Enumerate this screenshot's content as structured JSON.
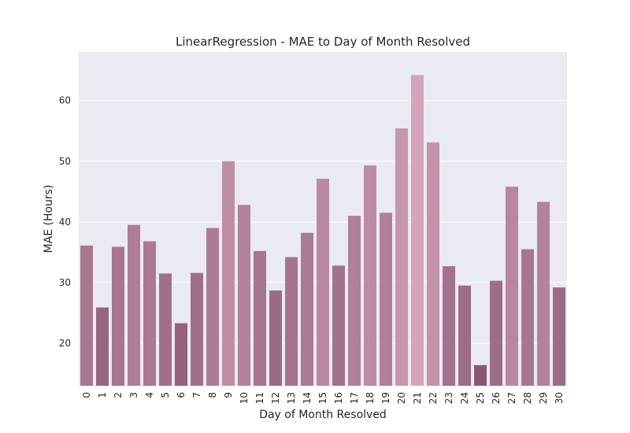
{
  "chart_data": {
    "type": "bar",
    "title": "LinearRegression - MAE to Day of Month Resolved",
    "xlabel": "Day of Month Resolved",
    "ylabel": "MAE (Hours)",
    "categories": [
      "0",
      "1",
      "2",
      "3",
      "4",
      "5",
      "6",
      "7",
      "8",
      "9",
      "10",
      "11",
      "12",
      "13",
      "14",
      "15",
      "16",
      "17",
      "18",
      "19",
      "20",
      "21",
      "22",
      "23",
      "24",
      "25",
      "26",
      "27",
      "28",
      "29",
      "30"
    ],
    "values": [
      36.1,
      25.9,
      35.9,
      39.5,
      36.8,
      31.5,
      23.3,
      31.6,
      39.0,
      50.0,
      42.8,
      35.2,
      28.7,
      34.2,
      38.2,
      47.1,
      32.8,
      41.0,
      49.3,
      41.5,
      55.4,
      64.2,
      53.1,
      32.7,
      29.5,
      16.4,
      30.3,
      45.8,
      35.5,
      43.3,
      29.2
    ],
    "ylim": [
      13,
      68
    ],
    "yticks": [
      20,
      30,
      40,
      50,
      60
    ],
    "grid": true,
    "colors": {
      "light": "#d4a5ba",
      "dark": "#8a5674",
      "background": "#eaeaf2",
      "grid": "#ffffff"
    }
  }
}
